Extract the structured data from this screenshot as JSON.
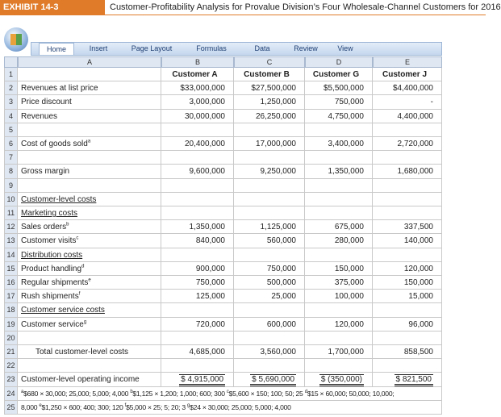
{
  "header": {
    "exhibit": "EXHIBIT 14-3",
    "title": "Customer-Profitability Analysis for Provalue Division’s Four Wholesale-Channel Customers for 2016"
  },
  "ribbon": {
    "tabs": [
      "Home",
      "Insert",
      "Page Layout",
      "Formulas",
      "Data",
      "Review",
      "View"
    ]
  },
  "table": {
    "columns": [
      "A",
      "B",
      "C",
      "D",
      "E"
    ],
    "rows": [
      {
        "n": 1,
        "header": true,
        "cells": [
          "Customer A",
          "Customer B",
          "Customer G",
          "Customer J"
        ]
      },
      {
        "n": 2,
        "label": "Revenues at list price",
        "cells": [
          "$33,000,000",
          "$27,500,000",
          "$5,500,000",
          "$4,400,000"
        ]
      },
      {
        "n": 3,
        "label": "Price discount",
        "cells": [
          "3,000,000",
          "1,250,000",
          "750,000",
          "-"
        ]
      },
      {
        "n": 4,
        "label": "Revenues",
        "cells": [
          "30,000,000",
          "26,250,000",
          "4,750,000",
          "4,400,000"
        ]
      },
      {
        "n": 5
      },
      {
        "n": 6,
        "label": "Cost of goods sold",
        "sup": "a",
        "cells": [
          "20,400,000",
          "17,000,000",
          "3,400,000",
          "2,720,000"
        ]
      },
      {
        "n": 7
      },
      {
        "n": 8,
        "label": "Gross margin",
        "cells": [
          "9,600,000",
          "9,250,000",
          "1,350,000",
          "1,680,000"
        ]
      },
      {
        "n": 9
      },
      {
        "n": 10,
        "label": "Customer-level costs",
        "underline": true
      },
      {
        "n": 11,
        "label": "Marketing costs",
        "underline": true
      },
      {
        "n": 12,
        "label": "Sales orders",
        "sup": "b",
        "cells": [
          "1,350,000",
          "1,125,000",
          "675,000",
          "337,500"
        ]
      },
      {
        "n": 13,
        "label": "Customer visits",
        "sup": "c",
        "cells": [
          "840,000",
          "560,000",
          "280,000",
          "140,000"
        ]
      },
      {
        "n": 14,
        "label": "Distribution costs",
        "underline": true
      },
      {
        "n": 15,
        "label": "Product handling",
        "sup": "d",
        "cells": [
          "900,000",
          "750,000",
          "150,000",
          "120,000"
        ]
      },
      {
        "n": 16,
        "label": "Regular shipments",
        "sup": "e",
        "cells": [
          "750,000",
          "500,000",
          "375,000",
          "150,000"
        ]
      },
      {
        "n": 17,
        "label": "Rush shipments",
        "sup": "f",
        "cells": [
          "125,000",
          "25,000",
          "100,000",
          "15,000"
        ]
      },
      {
        "n": 18,
        "label": "Customer service costs",
        "underline": true
      },
      {
        "n": 19,
        "label": "Customer service",
        "sup": "g",
        "cells": [
          "720,000",
          "600,000",
          "120,000",
          "96,000"
        ]
      },
      {
        "n": 20
      },
      {
        "n": 21,
        "label": "Total customer-level costs",
        "indent": true,
        "cells": [
          "4,685,000",
          "3,560,000",
          "1,700,000",
          "858,500"
        ]
      },
      {
        "n": 22
      },
      {
        "n": 23,
        "label": "Customer-level operating income",
        "total": true,
        "cells": [
          "$ 4,915,000",
          "$ 5,690,000",
          "$ (350,000)",
          "$ 821,500"
        ]
      },
      {
        "n": 24,
        "notes": [
          {
            "sup": "a",
            "text": "$680 × 30,000; 25,000; 5,000; 4,000 "
          },
          {
            "sup": "b",
            "text": "$1,125 × 1,200; 1,000; 600; 300 "
          },
          {
            "sup": "c",
            "text": "$5,600 × 150; 100; 50; 25 "
          },
          {
            "sup": "d",
            "text": "$15 × 60,000; 50,000; 10,000;"
          }
        ]
      },
      {
        "n": 25,
        "notes": [
          {
            "text": "8,000 "
          },
          {
            "sup": "e",
            "text": "$1,250 × 600; 400; 300; 120 "
          },
          {
            "sup": "f",
            "text": "$5,000 × 25; 5; 20; 3 "
          },
          {
            "sup": "g",
            "text": "$24 × 30,000; 25,000; 5,000; 4,000"
          }
        ]
      }
    ]
  }
}
